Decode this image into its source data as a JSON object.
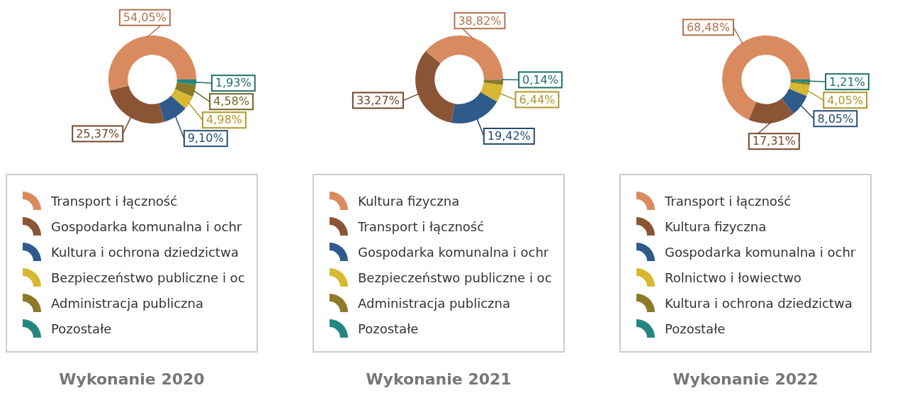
{
  "chart_data": [
    {
      "type": "donut",
      "title": "Wykonanie 2020",
      "legend": "bottom",
      "categories": [
        "Transport i łączność",
        "Gospodarka komunalna i ochr",
        "Kultura i ochrona dziedzictwa",
        "Bezpieczeństwo publiczne i oc",
        "Administracja publiczna",
        "Pozostałe"
      ],
      "values": [
        54.05,
        25.37,
        9.1,
        4.98,
        4.58,
        1.93
      ],
      "colors": [
        "#d98b5f",
        "#8b5535",
        "#2e5b8a",
        "#d8b832",
        "#8b7a2a",
        "#23877f"
      ],
      "value_labels": [
        "54,05%",
        "25,37%",
        "9,10%",
        "4,98%",
        "4,58%",
        "1,93%"
      ]
    },
    {
      "type": "donut",
      "title": "Wykonanie 2021",
      "legend": "bottom",
      "categories": [
        "Kultura fizyczna",
        "Transport i łączność",
        "Gospodarka komunalna i ochr",
        "Bezpieczeństwo publiczne i oc",
        "Administracja publiczna",
        "Pozostałe"
      ],
      "values": [
        38.82,
        33.27,
        19.42,
        6.44,
        1.91,
        0.14
      ],
      "colors": [
        "#d98b5f",
        "#8b5535",
        "#2e5b8a",
        "#d8b832",
        "#8b7a2a",
        "#23877f"
      ],
      "value_labels": [
        "38,82%",
        "33,27%",
        "19,42%",
        "6,44%",
        null,
        "0,14%"
      ]
    },
    {
      "type": "donut",
      "title": "Wykonanie 2022",
      "legend": "bottom",
      "categories": [
        "Transport i łączność",
        "Kultura fizyczna",
        "Gospodarka komunalna i ochr",
        "Rolnictwo i łowiectwo",
        "Kultura i ochrona dziedzictwa",
        "Pozostałe"
      ],
      "values": [
        68.48,
        17.31,
        8.05,
        4.05,
        0.9,
        1.21
      ],
      "colors": [
        "#d98b5f",
        "#8b5535",
        "#2e5b8a",
        "#d8b832",
        "#8b7a2a",
        "#23877f"
      ],
      "value_labels": [
        "68,48%",
        "17,31%",
        "8,05%",
        "4,05%",
        null,
        "1,21%"
      ]
    }
  ]
}
